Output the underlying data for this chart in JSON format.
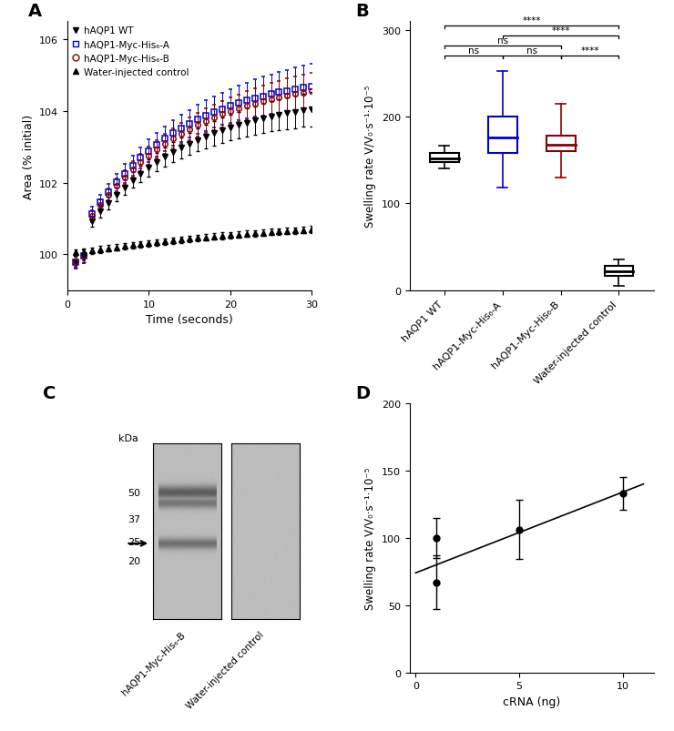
{
  "panel_A": {
    "xlabel": "Time (seconds)",
    "ylabel": "Area (% initial)",
    "xlim": [
      0,
      30
    ],
    "ylim": [
      99.0,
      106.5
    ],
    "yticks": [
      100,
      102,
      104,
      106
    ],
    "xticks": [
      0,
      10,
      20,
      30
    ],
    "series": {
      "hAQP1_WT": {
        "color": "#000000",
        "marker": "v",
        "label": "hAQP1 WT"
      },
      "hAQP1_A": {
        "color": "#0000CC",
        "marker": "s",
        "label": "hAQP1-Myc-His₆-A"
      },
      "hAQP1_B": {
        "color": "#8B0000",
        "marker": "o",
        "label": "hAQP1-Myc-His₆-B"
      },
      "water": {
        "color": "#000000",
        "marker": "^",
        "label": "Water-injected control"
      }
    }
  },
  "panel_B": {
    "ylabel": "Swelling rate V/V₀·s⁻¹·10⁻⁵",
    "ylim": [
      0,
      310
    ],
    "yticks": [
      0,
      100,
      200,
      300
    ],
    "xlabels": [
      "hAQP1 WT",
      "hAQP1-Myc-His₆-A",
      "hAQP1-Myc-His₆-B",
      "Water-injected control"
    ],
    "boxes": {
      "hAQP1_WT": {
        "color": "#000000",
        "median": 152,
        "q1": 148,
        "q3": 158,
        "wl": 140,
        "wh": 167
      },
      "hAQP1_A": {
        "color": "#0000CC",
        "median": 176,
        "q1": 158,
        "q3": 200,
        "wl": 118,
        "wh": 252
      },
      "hAQP1_B": {
        "color": "#8B0000",
        "median": 168,
        "q1": 160,
        "q3": 178,
        "wl": 130,
        "wh": 215
      },
      "water": {
        "color": "#000000",
        "median": 22,
        "q1": 17,
        "q3": 28,
        "wl": 5,
        "wh": 35
      }
    }
  },
  "panel_C": {
    "kda_labels": [
      50,
      37,
      25,
      20
    ],
    "gel1_label": "hAQP1-Myc-His₆-B",
    "gel2_label": "Water-injected control",
    "arrow_kda": 28
  },
  "panel_D": {
    "xlabel": "cRNA (ng)",
    "ylabel": "Swelling rate V/V₀·s⁻¹·10⁻⁵",
    "xlim": [
      -0.3,
      11.5
    ],
    "ylim": [
      0,
      200
    ],
    "yticks": [
      0,
      50,
      100,
      150,
      200
    ],
    "xticks": [
      0,
      5,
      10
    ],
    "points": {
      "x": [
        1,
        1,
        5,
        10
      ],
      "y": [
        67,
        100,
        106,
        133
      ],
      "yerr": [
        20,
        15,
        22,
        12
      ]
    },
    "fit_x": [
      0,
      11
    ],
    "fit_slope": 6.0,
    "fit_intercept": 74
  }
}
